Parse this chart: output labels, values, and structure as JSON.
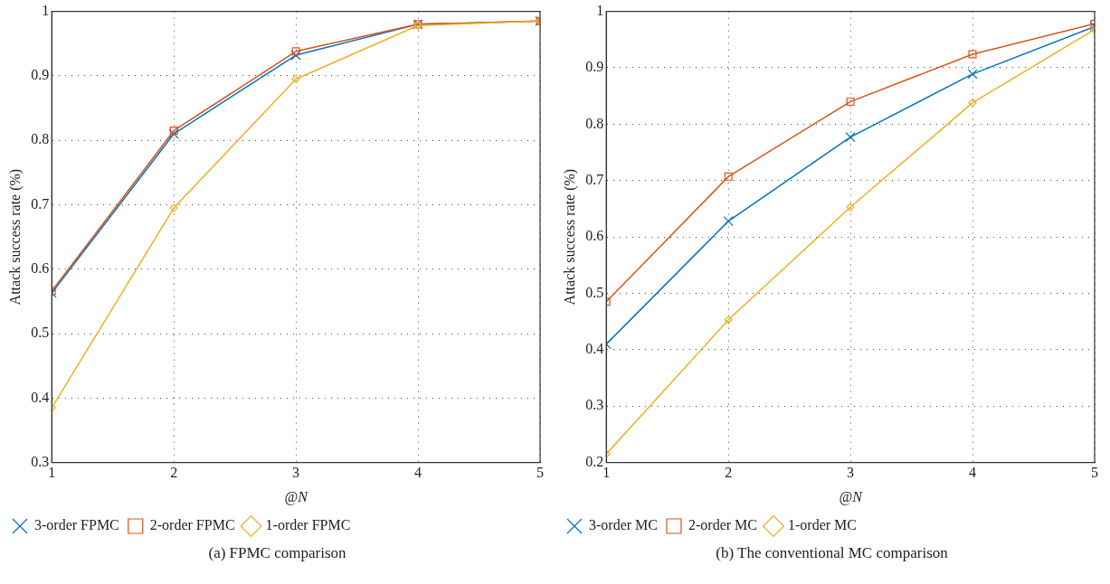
{
  "chart_data": [
    {
      "type": "line",
      "xlabel": "@N",
      "ylabel": "Attack success rate (%)",
      "x": [
        1,
        2,
        3,
        4,
        5
      ],
      "xlim": [
        1,
        5
      ],
      "xticks": [
        1,
        2,
        3,
        4,
        5
      ],
      "ylim": [
        0.3,
        1
      ],
      "yticks": [
        0.3,
        0.4,
        0.5,
        0.6,
        0.7,
        0.8,
        0.9,
        1
      ],
      "grid": true,
      "legend": "bottom left",
      "line_style": "solid",
      "annotations": [
        "(a)  FPMC comparison"
      ],
      "series": [
        {
          "name": "3-order FPMC",
          "color": "#0072bd",
          "marker": "cross",
          "values": [
            0.563,
            0.81,
            0.932,
            0.98,
            0.985
          ]
        },
        {
          "name": "2-order FPMC",
          "color": "#d95319",
          "marker": "square",
          "values": [
            0.566,
            0.815,
            0.938,
            0.98,
            0.985
          ]
        },
        {
          "name": "1-order FPMC",
          "color": "#edb120",
          "marker": "diamond",
          "values": [
            0.385,
            0.695,
            0.895,
            0.978,
            0.985
          ]
        }
      ]
    },
    {
      "type": "line",
      "xlabel": "@N",
      "ylabel": "Attack success rate (%)",
      "x": [
        1,
        2,
        3,
        4,
        5
      ],
      "xlim": [
        1,
        5
      ],
      "xticks": [
        1,
        2,
        3,
        4,
        5
      ],
      "ylim": [
        0.2,
        1
      ],
      "yticks": [
        0.2,
        0.3,
        0.4,
        0.5,
        0.6,
        0.7,
        0.8,
        0.9,
        1
      ],
      "grid": true,
      "legend": "bottom left",
      "line_style": "solid",
      "annotations": [
        "(b)  The conventional MC comparison"
      ],
      "series": [
        {
          "name": "3-order MC",
          "color": "#0072bd",
          "marker": "cross",
          "values": [
            0.41,
            0.628,
            0.777,
            0.889,
            0.973
          ]
        },
        {
          "name": "2-order MC",
          "color": "#d95319",
          "marker": "square",
          "values": [
            0.485,
            0.707,
            0.84,
            0.924,
            0.978
          ]
        },
        {
          "name": "1-order MC",
          "color": "#edb120",
          "marker": "diamond",
          "values": [
            0.215,
            0.453,
            0.653,
            0.838,
            0.968
          ]
        }
      ]
    }
  ]
}
